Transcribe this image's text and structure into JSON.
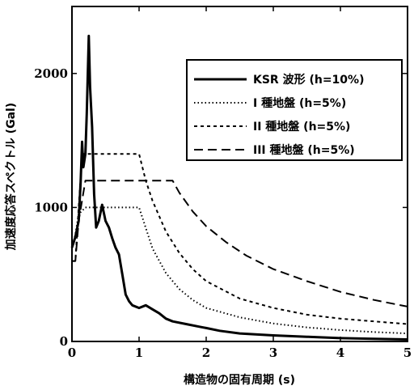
{
  "chart_data": {
    "type": "line",
    "xlabel": "構造物の固有周期 (s)",
    "ylabel": "加速度応答スペクトル (Gal)",
    "xlim": [
      0,
      5
    ],
    "ylim": [
      0,
      2500
    ],
    "xticks": [
      0,
      1,
      2,
      3,
      4,
      5
    ],
    "xtick_labels": [
      "0",
      "1",
      "2",
      "3",
      "4",
      "5"
    ],
    "yticks": [
      0,
      1000,
      2000
    ],
    "ytick_labels": [
      "0",
      "1000",
      "2000"
    ],
    "grid": false,
    "legend_position": "top-right",
    "series": [
      {
        "name": "KSR 波形 (h=10%)",
        "style": "solid",
        "x": [
          0,
          0.05,
          0.1,
          0.13,
          0.15,
          0.17,
          0.2,
          0.22,
          0.25,
          0.27,
          0.3,
          0.33,
          0.36,
          0.4,
          0.45,
          0.5,
          0.55,
          0.6,
          0.65,
          0.7,
          0.75,
          0.8,
          0.85,
          0.9,
          1.0,
          1.1,
          1.2,
          1.3,
          1.4,
          1.5,
          1.7,
          1.9,
          2.0,
          2.2,
          2.5,
          3.0,
          3.5,
          4.0,
          4.5,
          5.0
        ],
        "y": [
          700,
          780,
          900,
          1200,
          1490,
          1300,
          1400,
          1700,
          2280,
          1900,
          1600,
          1100,
          850,
          900,
          1020,
          900,
          850,
          770,
          700,
          650,
          500,
          350,
          300,
          270,
          250,
          270,
          240,
          210,
          170,
          150,
          130,
          110,
          100,
          80,
          60,
          45,
          35,
          25,
          20,
          15
        ]
      },
      {
        "name": "I 種地盤 (h=5%)",
        "style": "dotted",
        "x": [
          0,
          0.05,
          0.1,
          0.2,
          0.3,
          0.4,
          0.5,
          0.6,
          0.7,
          0.8,
          0.9,
          1.0,
          1.2,
          1.4,
          1.6,
          1.8,
          2.0,
          2.5,
          3.0,
          3.5,
          4.0,
          4.5,
          5.0
        ],
        "y": [
          700,
          800,
          950,
          1000,
          1000,
          1000,
          1000,
          1000,
          1000,
          1000,
          1000,
          1000,
          694,
          510,
          391,
          309,
          250,
          180,
          134,
          105,
          85,
          70,
          60
        ]
      },
      {
        "name": "II 種地盤 (h=5%)",
        "style": "dashed-short",
        "x": [
          0,
          0.05,
          0.1,
          0.15,
          0.2,
          0.3,
          0.4,
          0.5,
          0.6,
          0.7,
          0.8,
          0.9,
          1.0,
          1.1,
          1.2,
          1.4,
          1.6,
          1.8,
          2.0,
          2.5,
          3.0,
          3.5,
          4.0,
          4.5,
          5.0
        ],
        "y": [
          600,
          600,
          1000,
          1400,
          1400,
          1400,
          1400,
          1400,
          1400,
          1400,
          1400,
          1400,
          1400,
          1200,
          1050,
          820,
          660,
          540,
          450,
          320,
          250,
          200,
          170,
          150,
          130
        ]
      },
      {
        "name": "III 種地盤 (h=5%)",
        "style": "dashed-long",
        "x": [
          0,
          0.05,
          0.1,
          0.2,
          0.3,
          0.5,
          0.8,
          1.0,
          1.2,
          1.5,
          1.6,
          1.8,
          2.0,
          2.3,
          2.6,
          3.0,
          3.5,
          4.0,
          4.5,
          5.0
        ],
        "y": [
          600,
          600,
          900,
          1200,
          1200,
          1200,
          1200,
          1200,
          1200,
          1200,
          1110,
          970,
          860,
          740,
          640,
          540,
          450,
          370,
          310,
          260
        ]
      }
    ]
  }
}
